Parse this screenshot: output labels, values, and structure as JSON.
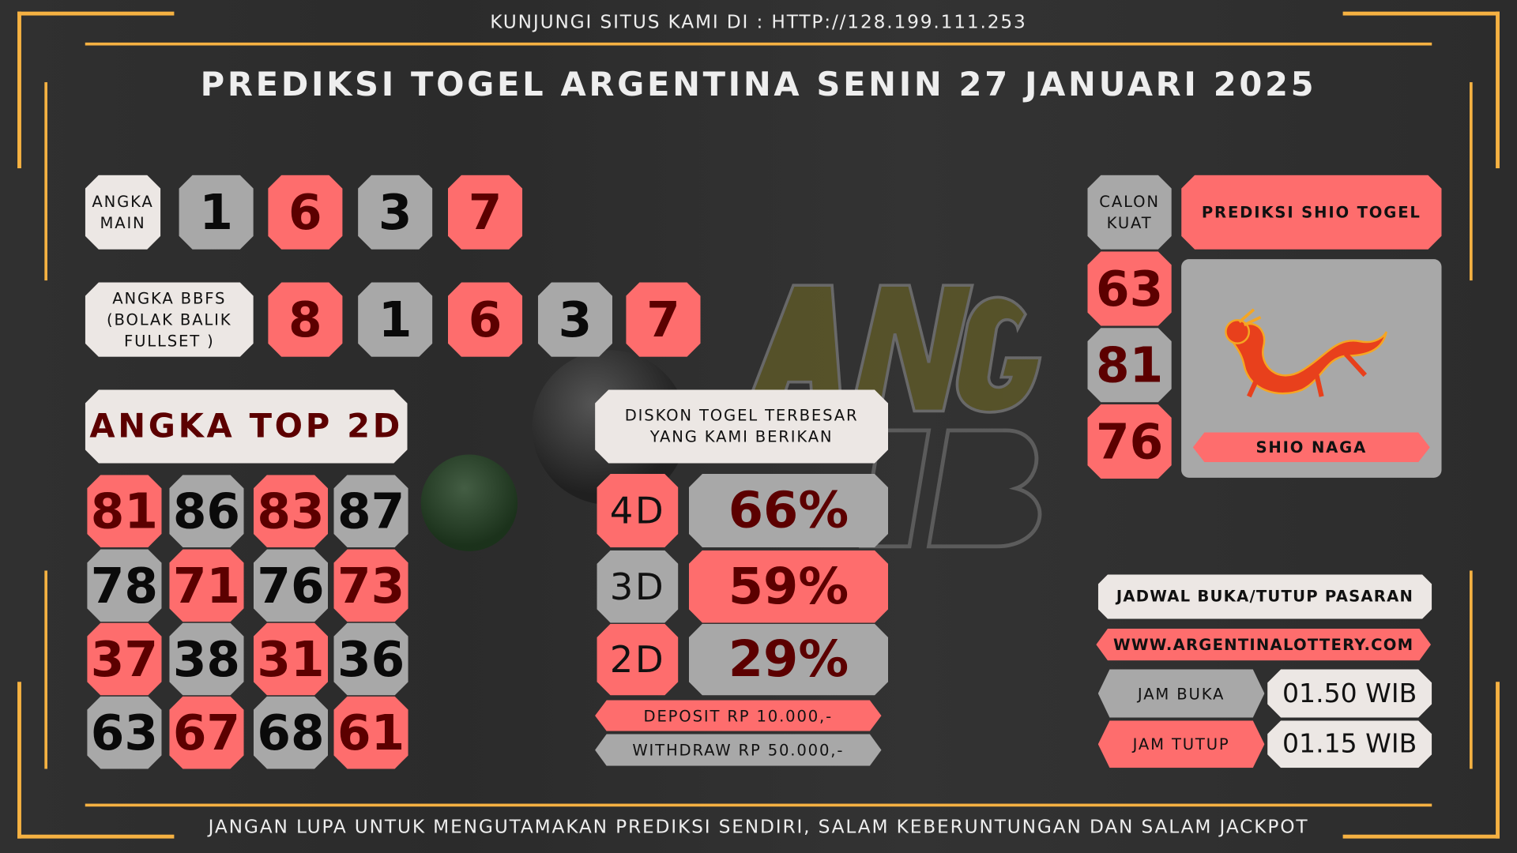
{
  "header": {
    "site_text": "KUNJUNGI SITUS KAMI DI : HTTP://128.199.111.253",
    "title": "PREDIKSI TOGEL ARGENTINA SENIN 27 JANUARI 2025"
  },
  "footer": {
    "text": "JANGAN LUPA UNTUK MENGUTAMAKAN PREDIKSI SENDIRI, SALAM KEBERUNTUNGAN DAN SALAM JACKPOT"
  },
  "watermark": {
    "logo": "ANGKA"
  },
  "angka_main": {
    "label_1": "ANGKA",
    "label_2": "MAIN",
    "numbers": [
      "1",
      "6",
      "3",
      "7"
    ]
  },
  "bbfs": {
    "label_1": "ANGKA BBFS",
    "label_2": "(BOLAK BALIK",
    "label_3": "FULLSET )",
    "numbers": [
      "8",
      "1",
      "6",
      "3",
      "7"
    ]
  },
  "top2d": {
    "label": "ANGKA TOP 2D",
    "rows": [
      [
        "81",
        "86",
        "83",
        "87"
      ],
      [
        "78",
        "71",
        "76",
        "73"
      ],
      [
        "37",
        "38",
        "31",
        "36"
      ],
      [
        "63",
        "67",
        "68",
        "61"
      ]
    ]
  },
  "diskon": {
    "label_1": "DISKON TOGEL TERBESAR",
    "label_2": "YANG KAMI BERIKAN",
    "rows": [
      {
        "type": "4D",
        "value": "66%"
      },
      {
        "type": "3D",
        "value": "59%"
      },
      {
        "type": "2D",
        "value": "29%"
      }
    ],
    "deposit": "DEPOSIT RP 10.000,-",
    "withdraw": "WITHDRAW RP 50.000,-"
  },
  "calon_kuat": {
    "label_1": "CALON",
    "label_2": "KUAT",
    "numbers": [
      "63",
      "81",
      "76"
    ]
  },
  "shio": {
    "header": "PREDIKSI SHIO TOGEL",
    "name": "SHIO NAGA",
    "icon": "dragon-icon"
  },
  "jadwal": {
    "title": "JADWAL BUKA/TUTUP PASARAN",
    "website": "WWW.ARGENTINALOTTERY.COM",
    "buka_label": "JAM BUKA",
    "buka_value": "01.50 WIB",
    "tutup_label": "JAM TUTUP",
    "tutup_value": "01.15 WIB"
  },
  "colors": {
    "red": "#fe6d6d",
    "gray": "#a8a8a8",
    "light": "#ece7e4",
    "gold": "#f5b142",
    "dark_red": "#5c0000"
  }
}
